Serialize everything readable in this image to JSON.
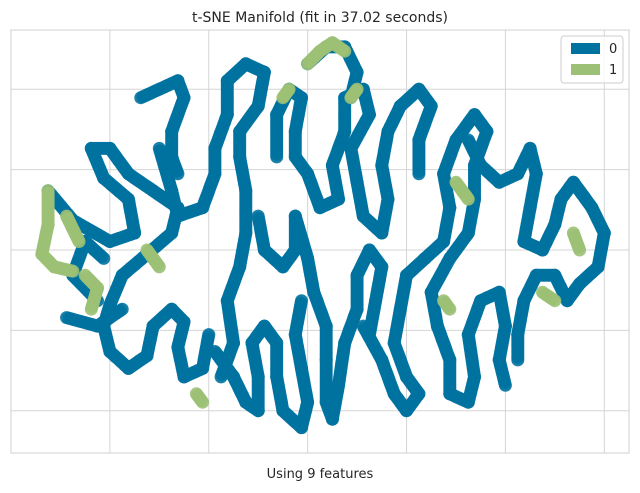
{
  "chart_data": {
    "type": "scatter",
    "title": "t-SNE Manifold (fit in 37.02 seconds)",
    "xlabel": "Using 9 features",
    "ylabel": "",
    "grid": true,
    "tick_labels_visible": false,
    "legend": {
      "placement": "top-right",
      "entries": [
        "0",
        "1"
      ]
    },
    "colors": {
      "0": "#0072a0",
      "1": "#9cc176",
      "grid": "#d5d5d5",
      "spine": "#d0d0d0"
    },
    "xlim": [
      0,
      100
    ],
    "ylim": [
      0,
      100
    ],
    "series": [
      {
        "name": "0",
        "strokes": [
          [
            [
              6,
              62
            ],
            [
              10,
              55
            ],
            [
              16,
              50
            ],
            [
              20,
              52
            ],
            [
              19,
              60
            ],
            [
              15,
              65
            ],
            [
              13,
              72
            ],
            [
              16,
              72
            ],
            [
              19,
              66
            ],
            [
              23,
              62
            ],
            [
              27,
              58
            ],
            [
              26,
              52
            ],
            [
              22,
              47
            ],
            [
              18,
              42
            ],
            [
              16,
              35
            ],
            [
              15,
              30
            ],
            [
              16,
              24
            ],
            [
              19,
              20
            ],
            [
              22,
              23
            ],
            [
              23,
              30
            ],
            [
              26,
              34
            ],
            [
              28,
              31
            ],
            [
              27,
              25
            ],
            [
              28,
              18
            ],
            [
              31,
              20
            ],
            [
              32,
              28
            ]
          ],
          [
            [
              21,
              84
            ],
            [
              24,
              86
            ],
            [
              27,
              88
            ],
            [
              28,
              84
            ],
            [
              26,
              76
            ],
            [
              26,
              70
            ],
            [
              27,
              66
            ]
          ],
          [
            [
              24,
              72
            ],
            [
              26,
              62
            ],
            [
              27,
              56
            ],
            [
              31,
              58
            ],
            [
              33,
              66
            ],
            [
              33,
              72
            ],
            [
              35,
              80
            ],
            [
              35,
              88
            ],
            [
              38,
              92
            ],
            [
              41,
              90
            ],
            [
              40,
              82
            ],
            [
              37,
              76
            ],
            [
              37,
              70
            ],
            [
              38,
              62
            ],
            [
              38,
              52
            ],
            [
              37,
              44
            ],
            [
              35,
              36
            ],
            [
              36,
              26
            ],
            [
              34,
              18
            ]
          ],
          [
            [
              43,
              70
            ],
            [
              43,
              80
            ],
            [
              45,
              86
            ],
            [
              47,
              84
            ],
            [
              46,
              76
            ],
            [
              46,
              70
            ],
            [
              48,
              66
            ],
            [
              50,
              58
            ],
            [
              53,
              60
            ],
            [
              52,
              68
            ],
            [
              54,
              76
            ],
            [
              54,
              84
            ],
            [
              57,
              86
            ],
            [
              58,
              80
            ],
            [
              55,
              72
            ],
            [
              56,
              64
            ],
            [
              57,
              56
            ],
            [
              60,
              52
            ],
            [
              61,
              60
            ],
            [
              60,
              68
            ],
            [
              61,
              76
            ],
            [
              63,
              82
            ],
            [
              66,
              86
            ],
            [
              68,
              82
            ],
            [
              66,
              74
            ],
            [
              66,
              66
            ]
          ],
          [
            [
              40,
              56
            ],
            [
              41,
              48
            ],
            [
              44,
              44
            ],
            [
              46,
              48
            ],
            [
              46,
              56
            ],
            [
              48,
              46
            ],
            [
              49,
              38
            ],
            [
              51,
              30
            ],
            [
              51,
              22
            ],
            [
              51,
              12
            ],
            [
              52,
              8
            ],
            [
              53,
              16
            ],
            [
              54,
              26
            ],
            [
              56,
              34
            ],
            [
              56,
              42
            ],
            [
              58,
              48
            ],
            [
              60,
              44
            ],
            [
              59,
              36
            ],
            [
              58,
              28
            ]
          ],
          [
            [
              57,
              30
            ],
            [
              60,
              22
            ],
            [
              62,
              14
            ],
            [
              64,
              10
            ],
            [
              66,
              14
            ],
            [
              64,
              18
            ],
            [
              62,
              26
            ],
            [
              63,
              34
            ],
            [
              64,
              42
            ],
            [
              67,
              46
            ],
            [
              70,
              50
            ],
            [
              71,
              58
            ],
            [
              70,
              66
            ],
            [
              72,
              74
            ],
            [
              75,
              80
            ],
            [
              77,
              76
            ],
            [
              75,
              68
            ],
            [
              75,
              60
            ],
            [
              74,
              52
            ],
            [
              71,
              46
            ],
            [
              68,
              38
            ],
            [
              69,
              30
            ],
            [
              71,
              22
            ],
            [
              71,
              14
            ],
            [
              74,
              12
            ],
            [
              75,
              18
            ],
            [
              74,
              28
            ],
            [
              76,
              36
            ],
            [
              79,
              38
            ],
            [
              80,
              30
            ],
            [
              79,
              22
            ],
            [
              80,
              16
            ]
          ],
          [
            [
              74,
              74
            ],
            [
              76,
              68
            ],
            [
              79,
              64
            ],
            [
              82,
              66
            ],
            [
              84,
              72
            ],
            [
              85,
              66
            ],
            [
              84,
              58
            ],
            [
              83,
              50
            ],
            [
              86,
              48
            ],
            [
              88,
              54
            ],
            [
              89,
              60
            ],
            [
              91,
              64
            ],
            [
              94,
              58
            ],
            [
              96,
              52
            ],
            [
              95,
              44
            ],
            [
              92,
              40
            ],
            [
              90,
              36
            ],
            [
              88,
              42
            ],
            [
              85,
              42
            ],
            [
              83,
              36
            ],
            [
              82,
              28
            ],
            [
              82,
              22
            ]
          ],
          [
            [
              33,
              24
            ],
            [
              36,
              18
            ],
            [
              38,
              12
            ],
            [
              40,
              10
            ],
            [
              40,
              18
            ],
            [
              39,
              26
            ],
            [
              41,
              30
            ],
            [
              43,
              26
            ],
            [
              43,
              18
            ],
            [
              44,
              10
            ],
            [
              47,
              6
            ],
            [
              48,
              12
            ],
            [
              47,
              20
            ],
            [
              46,
              28
            ],
            [
              47,
              36
            ]
          ],
          [
            [
              48,
              92
            ],
            [
              51,
              96
            ],
            [
              54,
              96
            ],
            [
              56,
              90
            ],
            [
              55,
              84
            ]
          ],
          [
            [
              9,
              32
            ],
            [
              14,
              30
            ],
            [
              18,
              34
            ]
          ],
          [
            [
              14,
              36
            ],
            [
              10,
              42
            ],
            [
              12,
              50
            ],
            [
              15,
              46
            ]
          ]
        ]
      },
      {
        "name": "1",
        "strokes": [
          [
            [
              6,
              62
            ],
            [
              6,
              54
            ],
            [
              5,
              47
            ],
            [
              7,
              44
            ],
            [
              10,
              43
            ]
          ],
          [
            [
              12,
              42
            ],
            [
              14,
              39
            ],
            [
              13,
              34
            ]
          ],
          [
            [
              9,
              56
            ],
            [
              11,
              50
            ]
          ],
          [
            [
              22,
              48
            ],
            [
              24,
              44
            ]
          ],
          [
            [
              48,
              92
            ],
            [
              50,
              95
            ],
            [
              52,
              97
            ],
            [
              54,
              95
            ]
          ],
          [
            [
              55,
              84
            ],
            [
              56,
              86
            ]
          ],
          [
            [
              72,
              64
            ],
            [
              74,
              60
            ]
          ],
          [
            [
              70,
              36
            ],
            [
              71,
              34
            ]
          ],
          [
            [
              44,
              84
            ],
            [
              45,
              86
            ]
          ],
          [
            [
              30,
              14
            ],
            [
              31,
              12
            ]
          ],
          [
            [
              86,
              38
            ],
            [
              88,
              36
            ]
          ],
          [
            [
              91,
              52
            ],
            [
              92,
              48
            ]
          ]
        ]
      }
    ]
  }
}
